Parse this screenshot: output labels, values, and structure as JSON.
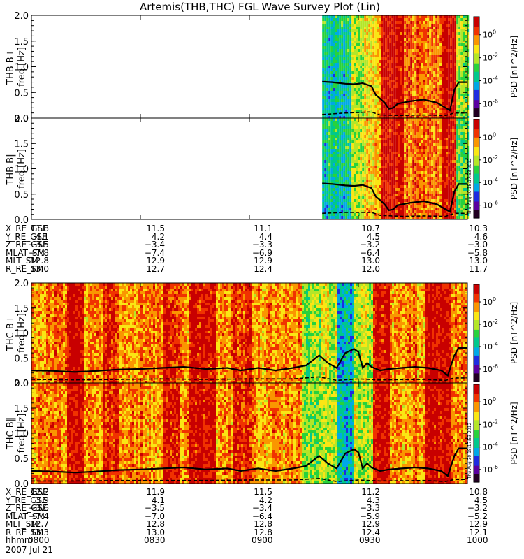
{
  "title": "Artemis(THB,THC) FGL Wave Survey Plot (Lin)",
  "timestamp": "Thu Aug 30 18:17:53 2012",
  "date": "2007 Jul 21",
  "colors": {
    "line": "#000000",
    "frame": "#000000"
  },
  "colorbar": {
    "label": "PSD [nT^2/Hz]",
    "tick_labels": [
      "10^0",
      "10^-2",
      "10^-4",
      "10^-6"
    ],
    "colormap": [
      "#220022",
      "#5a00a0",
      "#1e2ce0",
      "#00a8e6",
      "#00c88c",
      "#28d23c",
      "#b4e628",
      "#fae614",
      "#fa9600",
      "#f03200",
      "#c80000"
    ]
  },
  "chart_data": [
    {
      "type": "heatmap",
      "panel": "THB B⊥",
      "ylabel_top": "THB B⊥",
      "ylabel": "freq [Hz]",
      "ylim": [
        0.0,
        2.0
      ],
      "yticks": [
        "0.0",
        "0.5",
        "1.0",
        "1.5",
        "2.0"
      ],
      "x_data_start_fraction": 0.667,
      "line_solid": [
        [
          0.667,
          0.71
        ],
        [
          0.69,
          0.7
        ],
        [
          0.72,
          0.67
        ],
        [
          0.74,
          0.66
        ],
        [
          0.76,
          0.68
        ],
        [
          0.78,
          0.62
        ],
        [
          0.79,
          0.45
        ],
        [
          0.8,
          0.38
        ],
        [
          0.81,
          0.3
        ],
        [
          0.82,
          0.18
        ],
        [
          0.83,
          0.2
        ],
        [
          0.84,
          0.28
        ],
        [
          0.87,
          0.33
        ],
        [
          0.9,
          0.36
        ],
        [
          0.93,
          0.3
        ],
        [
          0.95,
          0.2
        ],
        [
          0.96,
          0.15
        ],
        [
          0.97,
          0.55
        ],
        [
          0.98,
          0.7
        ],
        [
          1.0,
          0.7
        ]
      ],
      "line_dashed": [
        [
          0.667,
          0.07
        ],
        [
          0.72,
          0.1
        ],
        [
          0.78,
          0.12
        ],
        [
          0.8,
          0.06
        ],
        [
          0.85,
          0.05
        ],
        [
          0.9,
          0.06
        ],
        [
          0.95,
          0.05
        ],
        [
          0.97,
          0.1
        ],
        [
          1.0,
          0.1
        ]
      ]
    },
    {
      "type": "heatmap",
      "panel": "THB B‖",
      "ylabel_top": "THB B‖",
      "ylabel": "freq [Hz]",
      "ylim": [
        0.0,
        2.0
      ],
      "yticks": [
        "0.0",
        "0.5",
        "1.0",
        "1.5",
        "2.0"
      ],
      "x_data_start_fraction": 0.667,
      "line_solid": [
        [
          0.667,
          0.71
        ],
        [
          0.69,
          0.7
        ],
        [
          0.72,
          0.67
        ],
        [
          0.74,
          0.66
        ],
        [
          0.76,
          0.68
        ],
        [
          0.78,
          0.62
        ],
        [
          0.79,
          0.45
        ],
        [
          0.8,
          0.38
        ],
        [
          0.81,
          0.3
        ],
        [
          0.82,
          0.18
        ],
        [
          0.83,
          0.2
        ],
        [
          0.84,
          0.28
        ],
        [
          0.87,
          0.33
        ],
        [
          0.9,
          0.36
        ],
        [
          0.93,
          0.3
        ],
        [
          0.95,
          0.2
        ],
        [
          0.96,
          0.15
        ],
        [
          0.97,
          0.55
        ],
        [
          0.98,
          0.7
        ],
        [
          1.0,
          0.7
        ]
      ],
      "line_dashed": [
        [
          0.667,
          0.12
        ],
        [
          0.72,
          0.14
        ],
        [
          0.78,
          0.14
        ],
        [
          0.8,
          0.08
        ],
        [
          0.85,
          0.06
        ],
        [
          0.9,
          0.07
        ],
        [
          0.95,
          0.06
        ],
        [
          0.97,
          0.12
        ],
        [
          1.0,
          0.12
        ]
      ]
    },
    {
      "type": "heatmap",
      "panel": "THC B⊥",
      "ylabel_top": "THC B⊥",
      "ylabel": "freq [Hz]",
      "ylim": [
        0.0,
        2.0
      ],
      "yticks": [
        "0.0",
        "0.5",
        "1.0",
        "1.5",
        "2.0"
      ],
      "x_data_start_fraction": 0.0,
      "line_solid": [
        [
          0.0,
          0.25
        ],
        [
          0.05,
          0.24
        ],
        [
          0.1,
          0.22
        ],
        [
          0.15,
          0.24
        ],
        [
          0.2,
          0.27
        ],
        [
          0.25,
          0.28
        ],
        [
          0.3,
          0.3
        ],
        [
          0.35,
          0.32
        ],
        [
          0.4,
          0.28
        ],
        [
          0.45,
          0.3
        ],
        [
          0.48,
          0.25
        ],
        [
          0.52,
          0.3
        ],
        [
          0.56,
          0.25
        ],
        [
          0.6,
          0.3
        ],
        [
          0.63,
          0.35
        ],
        [
          0.66,
          0.55
        ],
        [
          0.68,
          0.4
        ],
        [
          0.7,
          0.3
        ],
        [
          0.72,
          0.6
        ],
        [
          0.74,
          0.68
        ],
        [
          0.75,
          0.62
        ],
        [
          0.76,
          0.3
        ],
        [
          0.77,
          0.4
        ],
        [
          0.78,
          0.32
        ],
        [
          0.8,
          0.25
        ],
        [
          0.82,
          0.28
        ],
        [
          0.85,
          0.3
        ],
        [
          0.88,
          0.32
        ],
        [
          0.91,
          0.3
        ],
        [
          0.94,
          0.25
        ],
        [
          0.955,
          0.15
        ],
        [
          0.97,
          0.55
        ],
        [
          0.98,
          0.7
        ],
        [
          1.0,
          0.7
        ]
      ],
      "line_dashed": [
        [
          0.0,
          0.07
        ],
        [
          0.1,
          0.06
        ],
        [
          0.2,
          0.07
        ],
        [
          0.3,
          0.08
        ],
        [
          0.4,
          0.07
        ],
        [
          0.5,
          0.08
        ],
        [
          0.6,
          0.08
        ],
        [
          0.66,
          0.12
        ],
        [
          0.7,
          0.05
        ],
        [
          0.75,
          0.08
        ],
        [
          0.8,
          0.06
        ],
        [
          0.9,
          0.07
        ],
        [
          0.95,
          0.05
        ],
        [
          0.97,
          0.1
        ],
        [
          1.0,
          0.1
        ]
      ]
    },
    {
      "type": "heatmap",
      "panel": "THC B‖",
      "ylabel_top": "THC B‖",
      "ylabel": "freq [Hz]",
      "ylim": [
        0.0,
        2.0
      ],
      "yticks": [
        "0.0",
        "0.5",
        "1.0",
        "1.5",
        "2.0"
      ],
      "x_data_start_fraction": 0.0,
      "line_solid": [
        [
          0.0,
          0.25
        ],
        [
          0.05,
          0.24
        ],
        [
          0.1,
          0.22
        ],
        [
          0.15,
          0.24
        ],
        [
          0.2,
          0.27
        ],
        [
          0.25,
          0.28
        ],
        [
          0.3,
          0.3
        ],
        [
          0.35,
          0.32
        ],
        [
          0.4,
          0.28
        ],
        [
          0.45,
          0.3
        ],
        [
          0.48,
          0.25
        ],
        [
          0.52,
          0.3
        ],
        [
          0.56,
          0.25
        ],
        [
          0.6,
          0.3
        ],
        [
          0.63,
          0.35
        ],
        [
          0.66,
          0.55
        ],
        [
          0.68,
          0.4
        ],
        [
          0.7,
          0.3
        ],
        [
          0.72,
          0.6
        ],
        [
          0.74,
          0.68
        ],
        [
          0.75,
          0.62
        ],
        [
          0.76,
          0.3
        ],
        [
          0.77,
          0.4
        ],
        [
          0.78,
          0.32
        ],
        [
          0.8,
          0.25
        ],
        [
          0.82,
          0.28
        ],
        [
          0.85,
          0.3
        ],
        [
          0.88,
          0.32
        ],
        [
          0.91,
          0.3
        ],
        [
          0.94,
          0.25
        ],
        [
          0.955,
          0.15
        ],
        [
          0.97,
          0.55
        ],
        [
          0.98,
          0.7
        ],
        [
          1.0,
          0.7
        ]
      ],
      "line_dashed": [
        [
          0.0,
          0.05
        ],
        [
          0.1,
          0.05
        ],
        [
          0.2,
          0.06
        ],
        [
          0.3,
          0.06
        ],
        [
          0.4,
          0.06
        ],
        [
          0.5,
          0.07
        ],
        [
          0.6,
          0.07
        ],
        [
          0.66,
          0.1
        ],
        [
          0.7,
          0.04
        ],
        [
          0.75,
          0.07
        ],
        [
          0.8,
          0.05
        ],
        [
          0.9,
          0.06
        ],
        [
          0.95,
          0.04
        ],
        [
          0.97,
          0.08
        ],
        [
          1.0,
          0.08
        ]
      ]
    }
  ],
  "ephemeris_thb": {
    "labels": [
      "X_RE_GSE",
      "Y_RE_GSE",
      "Z_RE_GSE",
      "MLAT_SM",
      "MLT_SM",
      "R_RE_SM"
    ],
    "values": [
      [
        "11.8",
        "11.5",
        "11.1",
        "10.7",
        "10.3"
      ],
      [
        "4.1",
        "4.2",
        "4.4",
        "4.5",
        "4.6"
      ],
      [
        "−3.5",
        "−3.4",
        "−3.3",
        "−3.2",
        "−3.0"
      ],
      [
        "−7.8",
        "−7.4",
        "−6.9",
        "−6.4",
        "−5.8"
      ],
      [
        "12.8",
        "12.9",
        "12.9",
        "13.0",
        "13.0"
      ],
      [
        "13.0",
        "12.7",
        "12.4",
        "12.0",
        "11.7"
      ]
    ]
  },
  "ephemeris_thc": {
    "labels": [
      "X_RE_GSE",
      "Y_RE_GSE",
      "Z_RE_GSE",
      "MLAT_SM",
      "MLT_SM",
      "R_RE_SM",
      "hhmm"
    ],
    "values": [
      [
        "12.2",
        "11.9",
        "11.5",
        "11.2",
        "10.8"
      ],
      [
        "3.9",
        "4.1",
        "4.2",
        "4.3",
        "4.5"
      ],
      [
        "−3.6",
        "−3.5",
        "−3.4",
        "−3.3",
        "−3.2"
      ],
      [
        "−7.4",
        "−7.0",
        "−6.4",
        "−5.9",
        "−5.2"
      ],
      [
        "12.7",
        "12.8",
        "12.8",
        "12.9",
        "12.9"
      ],
      [
        "13.3",
        "13.0",
        "12.8",
        "12.4",
        "12.1"
      ],
      [
        "0800",
        "0830",
        "0900",
        "0930",
        "1000"
      ]
    ]
  }
}
